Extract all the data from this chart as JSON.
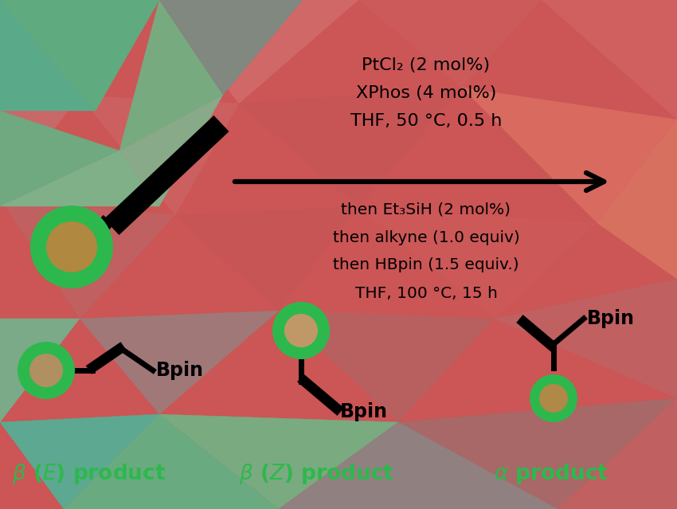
{
  "background_color": "#cc5555",
  "green_color": "#2db84d",
  "black_color": "#111111",
  "text_color": "#111111",
  "green_label_color": "#2db84d",
  "line1_above": "PtCl₂ (2 mol%)",
  "line2_above": "XPhos (4 mol%)",
  "line3_above": "THF, 50 °C, 0.5 h",
  "line1_below": "then Et₃SiH (2 mol%)",
  "line2_below": "then alkyne (1.0 equiv)",
  "line3_below": "then HBpin (1.5 equiv.)",
  "line4_below": "THF, 100 °C, 15 h",
  "label_beta_E": "β (E) product",
  "label_beta_Z": "β (Z) product",
  "label_alpha": "α product",
  "figsize": [
    8.5,
    6.39
  ],
  "dpi": 100,
  "triangles": [
    {
      "pts": [
        0,
        0,
        200,
        0,
        100,
        120
      ],
      "color": "#d4756e"
    },
    {
      "pts": [
        200,
        0,
        450,
        0,
        300,
        130
      ],
      "color": "#d06868"
    },
    {
      "pts": [
        450,
        0,
        680,
        0,
        580,
        110
      ],
      "color": "#cc5a5a"
    },
    {
      "pts": [
        680,
        0,
        850,
        0,
        850,
        150
      ],
      "color": "#d06060"
    },
    {
      "pts": [
        0,
        0,
        100,
        120,
        0,
        250
      ],
      "color": "#c86868"
    },
    {
      "pts": [
        100,
        120,
        300,
        130,
        220,
        270
      ],
      "color": "#cc6060"
    },
    {
      "pts": [
        300,
        130,
        580,
        110,
        450,
        260
      ],
      "color": "#c85555"
    },
    {
      "pts": [
        580,
        110,
        850,
        150,
        750,
        280
      ],
      "color": "#d86a60"
    },
    {
      "pts": [
        0,
        250,
        220,
        270,
        100,
        400
      ],
      "color": "#c06060"
    },
    {
      "pts": [
        220,
        270,
        450,
        260,
        350,
        390
      ],
      "color": "#c85555"
    },
    {
      "pts": [
        450,
        260,
        750,
        280,
        620,
        400
      ],
      "color": "#cc5858"
    },
    {
      "pts": [
        750,
        280,
        850,
        150,
        850,
        350
      ],
      "color": "#d06868"
    },
    {
      "pts": [
        0,
        400,
        100,
        400,
        0,
        530
      ],
      "color": "#7aaa88"
    },
    {
      "pts": [
        100,
        400,
        350,
        390,
        200,
        520
      ],
      "color": "#a07878"
    },
    {
      "pts": [
        350,
        390,
        620,
        400,
        500,
        530
      ],
      "color": "#b86060"
    },
    {
      "pts": [
        620,
        400,
        850,
        350,
        850,
        500
      ],
      "color": "#c06060"
    },
    {
      "pts": [
        0,
        530,
        200,
        520,
        80,
        639
      ],
      "color": "#5da890"
    },
    {
      "pts": [
        200,
        520,
        500,
        530,
        350,
        639
      ],
      "color": "#7aaa80"
    },
    {
      "pts": [
        500,
        530,
        850,
        500,
        700,
        639
      ],
      "color": "#a86868"
    },
    {
      "pts": [
        700,
        639,
        850,
        639,
        850,
        500
      ],
      "color": "#c06060"
    },
    {
      "pts": [
        80,
        639,
        350,
        639,
        200,
        520
      ],
      "color": "#6aaa80"
    },
    {
      "pts": [
        350,
        639,
        700,
        639,
        500,
        530
      ],
      "color": "#908080"
    },
    {
      "pts": [
        850,
        150,
        850,
        350,
        750,
        280
      ],
      "color": "#d87060"
    },
    {
      "pts": [
        0,
        0,
        0,
        250,
        100,
        120
      ],
      "color": "#c86868"
    }
  ]
}
